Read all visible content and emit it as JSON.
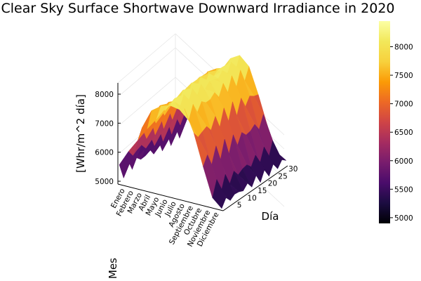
{
  "chart_data": {
    "type": "surface3d",
    "title": "Clear Sky Surface Shortwave Downward Irradiance in 2020",
    "zlabel": "[Whr/m^2 día]",
    "xlabel": "Mes",
    "ylabel": "Día",
    "x_ticks": [
      "Enero",
      "Febrero",
      "Marzo",
      "Abril",
      "Mayo",
      "Junio",
      "Julio",
      "Agosto",
      "Septiembre",
      "Octubre",
      "Noviembre",
      "Diciembre"
    ],
    "y_ticks": [
      5,
      10,
      15,
      20,
      25,
      30
    ],
    "z_ticks": [
      5000,
      6000,
      7000,
      8000
    ],
    "zlim": [
      4900,
      8450
    ],
    "colorbar": {
      "colormap": "inferno",
      "range": [
        4900,
        8450
      ],
      "ticks": [
        5000,
        5500,
        6000,
        6500,
        7000,
        7500,
        8000
      ]
    },
    "monthly_profile": [
      {
        "month": "Enero",
        "min": 5050,
        "max": 5700
      },
      {
        "month": "Febrero",
        "min": 5700,
        "max": 6400
      },
      {
        "month": "Marzo",
        "min": 6400,
        "max": 7200
      },
      {
        "month": "Abril",
        "min": 7100,
        "max": 7700
      },
      {
        "month": "Mayo",
        "min": 7500,
        "max": 8000
      },
      {
        "month": "Junio",
        "min": 7800,
        "max": 8300
      },
      {
        "month": "Julio",
        "min": 7900,
        "max": 8400
      },
      {
        "month": "Agosto",
        "min": 7600,
        "max": 8200
      },
      {
        "month": "Septiembre",
        "min": 6900,
        "max": 7600
      },
      {
        "month": "Octubre",
        "min": 6100,
        "max": 6800
      },
      {
        "month": "Noviembre",
        "min": 5300,
        "max": 5900
      },
      {
        "month": "Diciembre",
        "min": 5000,
        "max": 5400
      }
    ]
  }
}
